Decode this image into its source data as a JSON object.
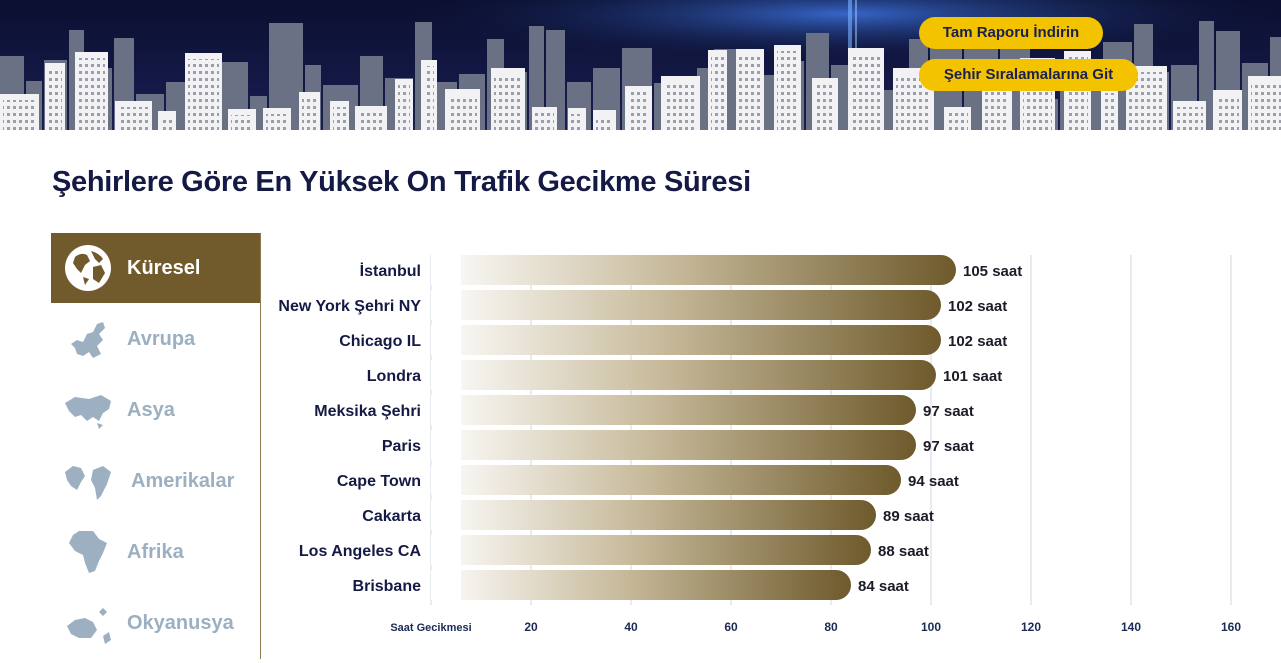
{
  "header": {
    "download_label": "Tam Raporu İndirin",
    "rankings_label": "Şehir Sıralamalarına Git"
  },
  "page_title": "Şehirlere Göre En Yüksek On Trafik Gecikme Süresi",
  "regions": [
    {
      "label": "Küresel",
      "icon": "globe-icon",
      "active": true
    },
    {
      "label": "Avrupa",
      "icon": "europe-map-icon",
      "active": false
    },
    {
      "label": "Asya",
      "icon": "asia-map-icon",
      "active": false
    },
    {
      "label": "Amerikalar",
      "icon": "americas-map-icon",
      "active": false
    },
    {
      "label": "Afrika",
      "icon": "africa-map-icon",
      "active": false
    },
    {
      "label": "Okyanusya",
      "icon": "oceania-map-icon",
      "active": false
    }
  ],
  "colors": {
    "accent_gold": "#f3c300",
    "bar_dark": "#6e5a2c",
    "active_tab": "#715a2b",
    "inactive_text": "#9cb0c2",
    "title": "#141a44"
  },
  "chart_data": {
    "type": "bar",
    "orientation": "horizontal",
    "categories": [
      "İstanbul",
      "New York Şehri NY",
      "Chicago IL",
      "Londra",
      "Meksika Şehri",
      "Paris",
      "Cape Town",
      "Cakarta",
      "Los Angeles CA",
      "Brisbane"
    ],
    "values": [
      105,
      102,
      102,
      101,
      97,
      97,
      94,
      89,
      88,
      84
    ],
    "value_labels": [
      "105 saat",
      "102 saat",
      "102 saat",
      "101 saat",
      "97 saat",
      "97 saat",
      "94 saat",
      "89 saat",
      "88 saat",
      "84 saat"
    ],
    "xlabel": "Saat Gecikmesi",
    "xticks": [
      20,
      40,
      60,
      80,
      100,
      120,
      140,
      160
    ],
    "xlim": [
      0,
      160
    ],
    "grid": true
  }
}
